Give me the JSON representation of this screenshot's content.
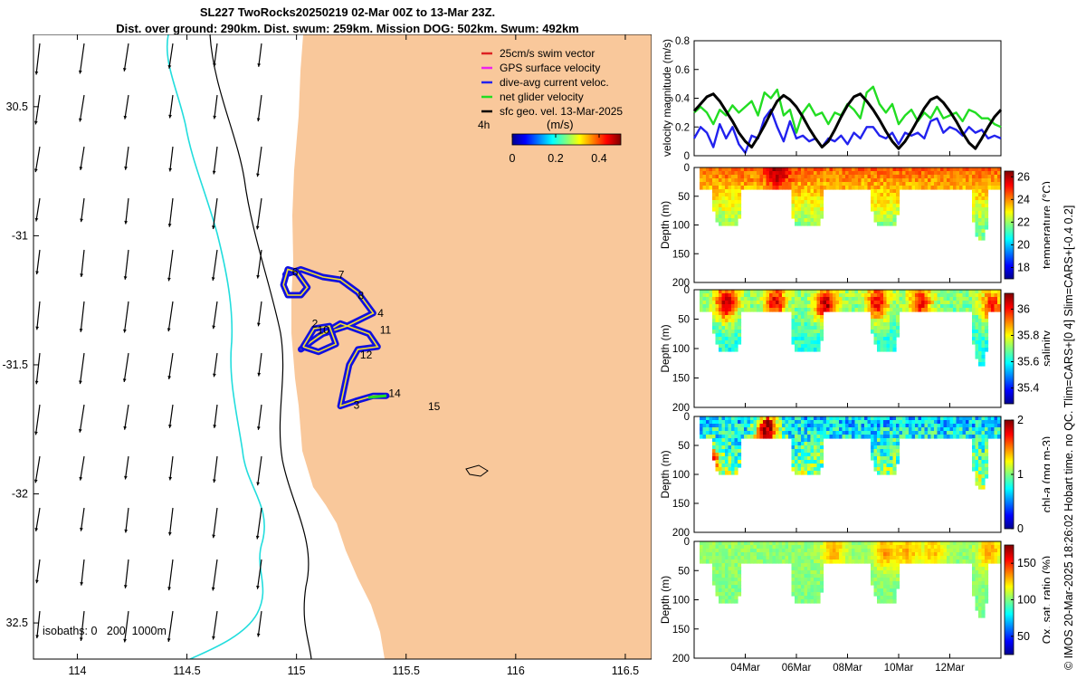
{
  "title": {
    "line1": "SL227 TwoRocks20250219 02-Mar 00Z to 13-Mar 23Z.",
    "line2": "Dist. over ground: 290km. Dist. swum: 259km. Mission DOG: 502km. Swum: 492km"
  },
  "stamp": "© IMOS 20-Mar-2025 18:26:02 Hobart time. no QC. Tlim=CARS+[0 4] Slim=CARS+[-0.4 0.2]",
  "colors": {
    "land": "#f9c89b",
    "glider_track": "#1010e0",
    "net_velocity": "#22dd22",
    "isobath_shallow": "#000000",
    "isobath_deep": "#22dddd"
  },
  "chart_data": [
    {
      "type": "map",
      "name": "glider track map",
      "x_ticks": [
        "114",
        "114.5",
        "115",
        "115.5",
        "116",
        "116.5"
      ],
      "y_ticks": [
        "30.5",
        "-31",
        "-31.5",
        "-32",
        "32.5"
      ],
      "xlim": [
        113.8,
        116.62
      ],
      "ylim": [
        -32.64,
        -30.22
      ],
      "legend": [
        {
          "label": "25cm/s swim vector",
          "color": "#dd2222"
        },
        {
          "label": "GPS surface velocity",
          "color": "#ee22ee"
        },
        {
          "label": "dive-avg current veloc.",
          "color": "#2222ee"
        },
        {
          "label": "net glider velocity",
          "color": "#22dd22"
        },
        {
          "label": "sfc geo. vel. 13-Mar-2025",
          "color": "#000000"
        }
      ],
      "colorbar": {
        "unit": "(m/s)",
        "scale_label": "4h",
        "ticks": [
          "0",
          "0.2",
          "0.4"
        ],
        "range": [
          0,
          0.5
        ]
      },
      "isobaths_label": "isobaths: 0   200  1000m",
      "day_labels": [
        {
          "text": "6",
          "lon": 114.98,
          "lat": -31.155
        },
        {
          "text": "7",
          "lon": 115.19,
          "lat": -31.165
        },
        {
          "text": "8",
          "lon": 115.28,
          "lat": -31.245
        },
        {
          "text": "4",
          "lon": 115.37,
          "lat": -31.315
        },
        {
          "text": "2",
          "lon": 115.07,
          "lat": -31.355
        },
        {
          "text": "10",
          "lon": 115.095,
          "lat": -31.38
        },
        {
          "text": "11",
          "lon": 115.38,
          "lat": -31.38
        },
        {
          "text": "12",
          "lon": 115.29,
          "lat": -31.475
        },
        {
          "text": "14",
          "lon": 115.42,
          "lat": -31.625
        },
        {
          "text": "3",
          "lon": 115.26,
          "lat": -31.67
        },
        {
          "text": "15",
          "lon": 115.6,
          "lat": -31.675
        }
      ],
      "track": [
        [
          114.95,
          -31.15
        ],
        [
          115.02,
          -31.13
        ],
        [
          115.12,
          -31.16
        ],
        [
          115.2,
          -31.17
        ],
        [
          115.28,
          -31.22
        ],
        [
          115.35,
          -31.3
        ],
        [
          115.23,
          -31.35
        ],
        [
          115.12,
          -31.38
        ],
        [
          115.05,
          -31.42
        ],
        [
          115.02,
          -31.44
        ],
        [
          115.1,
          -31.39
        ],
        [
          115.2,
          -31.34
        ],
        [
          115.33,
          -31.38
        ],
        [
          115.37,
          -31.43
        ],
        [
          115.28,
          -31.44
        ],
        [
          115.24,
          -31.5
        ],
        [
          115.22,
          -31.58
        ],
        [
          115.2,
          -31.66
        ],
        [
          115.27,
          -31.64
        ],
        [
          115.35,
          -31.62
        ],
        [
          115.41,
          -31.62
        ]
      ],
      "track_west_loop": [
        [
          114.94,
          -31.19
        ],
        [
          114.96,
          -31.13
        ],
        [
          115.0,
          -31.14
        ],
        [
          115.05,
          -31.2
        ],
        [
          115.02,
          -31.23
        ],
        [
          114.96,
          -31.23
        ],
        [
          114.94,
          -31.19
        ]
      ],
      "track_south_loop": [
        [
          115.03,
          -31.43
        ],
        [
          115.08,
          -31.36
        ],
        [
          115.15,
          -31.35
        ],
        [
          115.18,
          -31.42
        ],
        [
          115.1,
          -31.45
        ],
        [
          115.03,
          -31.43
        ]
      ],
      "current_arrows": {
        "u_ms": -0.02,
        "v_ms": -0.15
      }
    },
    {
      "type": "line",
      "name": "velocity magnitude",
      "ylabel": "velocity magnitude (m/s)",
      "ylim": [
        0,
        0.8
      ],
      "y_ticks": [
        "0",
        "0.2",
        "0.4",
        "0.6",
        "0.8"
      ],
      "x_days_range": [
        2.0,
        14.0
      ],
      "series": [
        {
          "name": "net glider velocity",
          "color": "#22dd22",
          "x": [
            2.0,
            2.25,
            2.5,
            2.75,
            3.0,
            3.25,
            3.5,
            3.75,
            4.0,
            4.25,
            4.5,
            4.75,
            5.0,
            5.25,
            5.5,
            5.75,
            6.0,
            6.25,
            6.5,
            6.75,
            7.0,
            7.25,
            7.5,
            7.75,
            8.0,
            8.25,
            8.5,
            8.75,
            9.0,
            9.25,
            9.5,
            9.75,
            10.0,
            10.25,
            10.5,
            10.75,
            11.0,
            11.25,
            11.5,
            11.75,
            12.0,
            12.25,
            12.5,
            12.75,
            13.0,
            13.25,
            13.5,
            13.75,
            14.0
          ],
          "values": [
            0.3,
            0.34,
            0.3,
            0.22,
            0.32,
            0.28,
            0.35,
            0.3,
            0.34,
            0.38,
            0.28,
            0.44,
            0.4,
            0.46,
            0.28,
            0.32,
            0.16,
            0.3,
            0.36,
            0.28,
            0.3,
            0.22,
            0.3,
            0.28,
            0.36,
            0.32,
            0.26,
            0.44,
            0.48,
            0.36,
            0.3,
            0.36,
            0.22,
            0.28,
            0.32,
            0.24,
            0.3,
            0.26,
            0.34,
            0.26,
            0.28,
            0.3,
            0.24,
            0.32,
            0.3,
            0.26,
            0.26,
            0.22,
            0.2
          ]
        },
        {
          "name": "dive-avg current veloc.",
          "color": "#2222ee",
          "x": [
            2.0,
            2.25,
            2.5,
            2.75,
            3.0,
            3.25,
            3.5,
            3.75,
            4.0,
            4.25,
            4.5,
            4.75,
            5.0,
            5.25,
            5.5,
            5.75,
            6.0,
            6.25,
            6.5,
            6.75,
            7.0,
            7.25,
            7.5,
            7.75,
            8.0,
            8.25,
            8.5,
            8.75,
            9.0,
            9.25,
            9.5,
            9.75,
            10.0,
            10.25,
            10.5,
            10.75,
            11.0,
            11.25,
            11.5,
            11.75,
            12.0,
            12.25,
            12.5,
            12.75,
            13.0,
            13.25,
            13.5,
            13.75,
            14.0
          ],
          "values": [
            0.12,
            0.2,
            0.16,
            0.06,
            0.22,
            0.12,
            0.2,
            0.08,
            0.02,
            0.14,
            0.12,
            0.26,
            0.32,
            0.2,
            0.1,
            0.24,
            0.12,
            0.14,
            0.1,
            0.12,
            0.06,
            0.12,
            0.1,
            0.14,
            0.08,
            0.16,
            0.12,
            0.2,
            0.2,
            0.14,
            0.12,
            0.16,
            0.08,
            0.16,
            0.14,
            0.16,
            0.12,
            0.24,
            0.26,
            0.16,
            0.2,
            0.18,
            0.14,
            0.2,
            0.16,
            0.18,
            0.12,
            0.14,
            0.12
          ]
        },
        {
          "name": "surface geostrophic",
          "color": "#000000",
          "x": [
            2.0,
            2.25,
            2.5,
            2.75,
            3.0,
            3.25,
            3.5,
            3.75,
            4.0,
            4.25,
            4.5,
            4.75,
            5.0,
            5.25,
            5.5,
            5.75,
            6.0,
            6.25,
            6.5,
            6.75,
            7.0,
            7.25,
            7.5,
            7.75,
            8.0,
            8.25,
            8.5,
            8.75,
            9.0,
            9.25,
            9.5,
            9.75,
            10.0,
            10.25,
            10.5,
            10.75,
            11.0,
            11.25,
            11.5,
            11.75,
            12.0,
            12.25,
            12.5,
            12.75,
            13.0,
            13.25,
            13.5,
            13.75,
            14.0
          ],
          "values": [
            0.31,
            0.36,
            0.41,
            0.43,
            0.38,
            0.31,
            0.24,
            0.16,
            0.1,
            0.06,
            0.13,
            0.21,
            0.3,
            0.38,
            0.42,
            0.39,
            0.34,
            0.27,
            0.19,
            0.12,
            0.06,
            0.1,
            0.18,
            0.27,
            0.35,
            0.41,
            0.43,
            0.38,
            0.32,
            0.25,
            0.17,
            0.1,
            0.05,
            0.1,
            0.17,
            0.25,
            0.33,
            0.39,
            0.41,
            0.37,
            0.31,
            0.24,
            0.16,
            0.09,
            0.05,
            0.12,
            0.2,
            0.27,
            0.32
          ]
        }
      ]
    },
    {
      "type": "heatmap",
      "name": "temperature section",
      "ylabel": "Depth (m)",
      "y_ticks": [
        "0",
        "50",
        "100",
        "150",
        "200"
      ],
      "ylim": [
        0,
        200
      ],
      "colorbar_label": "temperature (°C)",
      "colorbar_ticks": [
        "18",
        "20",
        "22",
        "24",
        "26"
      ],
      "crange": [
        17,
        26.5
      ],
      "base_value": 24.4,
      "deep_value": 21.8,
      "noise": 0.6,
      "hotspots": [
        {
          "day": 5.2,
          "depth": 5,
          "value": 26.4
        }
      ]
    },
    {
      "type": "heatmap",
      "name": "salinity section",
      "ylabel": "Depth (m)",
      "y_ticks": [
        "0",
        "50",
        "100",
        "150",
        "200"
      ],
      "ylim": [
        0,
        200
      ],
      "colorbar_label": "salinity",
      "colorbar_ticks": [
        "35.4",
        "35.6",
        "35.8",
        "36"
      ],
      "crange": [
        35.28,
        36.12
      ],
      "base_value": 35.72,
      "deep_value": 35.62,
      "noise": 0.06,
      "hotspots": [
        {
          "day": 3.2,
          "depth": 20,
          "value": 36.1
        },
        {
          "day": 5.1,
          "depth": 20,
          "value": 36.05
        },
        {
          "day": 7.1,
          "depth": 25,
          "value": 36.1
        },
        {
          "day": 9.1,
          "depth": 20,
          "value": 36.05
        },
        {
          "day": 10.8,
          "depth": 20,
          "value": 36.02
        },
        {
          "day": 13.6,
          "depth": 25,
          "value": 36.0
        }
      ]
    },
    {
      "type": "heatmap",
      "name": "chlorophyll section",
      "ylabel": "Depth (m)",
      "y_ticks": [
        "0",
        "50",
        "100",
        "150",
        "200"
      ],
      "ylim": [
        0,
        200
      ],
      "colorbar_label": "chl-a (mg m-3)",
      "colorbar_ticks": [
        "0",
        "1",
        "2"
      ],
      "crange": [
        0,
        2
      ],
      "base_value": 0.65,
      "deep_value": 1.05,
      "noise": 0.3,
      "hotspots": [
        {
          "day": 4.8,
          "depth": 20,
          "value": 1.95
        },
        {
          "day": 2.4,
          "depth": 80,
          "value": 1.9
        }
      ]
    },
    {
      "type": "heatmap",
      "name": "oxygen saturation section",
      "ylabel": "Depth (m)",
      "y_ticks": [
        "0",
        "50",
        "100",
        "150",
        "200"
      ],
      "ylim": [
        0,
        200
      ],
      "colorbar_label": "Ox. sat. ratio (%)",
      "colorbar_ticks": [
        "50",
        "100",
        "150"
      ],
      "crange": [
        25,
        175
      ],
      "base_value": 103,
      "deep_value": 100,
      "noise": 6,
      "hotspots": [
        {
          "day": 7.4,
          "depth": 15,
          "value": 132
        },
        {
          "day": 9.4,
          "depth": 15,
          "value": 134
        },
        {
          "day": 10.3,
          "depth": 15,
          "value": 130
        },
        {
          "day": 11.3,
          "depth": 15,
          "value": 128
        },
        {
          "day": 13.5,
          "depth": 15,
          "value": 133
        }
      ]
    },
    {
      "type": "time_axis",
      "x_ticks": [
        {
          "label": "04Mar",
          "day": 4
        },
        {
          "label": "06Mar",
          "day": 6
        },
        {
          "label": "08Mar",
          "day": 8
        },
        {
          "label": "10Mar",
          "day": 10
        },
        {
          "label": "12Mar",
          "day": 12
        }
      ],
      "section_shape": {
        "profile_windows": [
          {
            "start": 2.7,
            "end": 3.8,
            "max_depth": 100
          },
          {
            "start": 5.7,
            "end": 7.0,
            "max_depth": 100
          },
          {
            "start": 8.9,
            "end": 9.95,
            "max_depth": 100
          },
          {
            "start": 12.85,
            "end": 13.45,
            "max_depth": 125
          }
        ],
        "shallow_depth": 35
      }
    }
  ]
}
